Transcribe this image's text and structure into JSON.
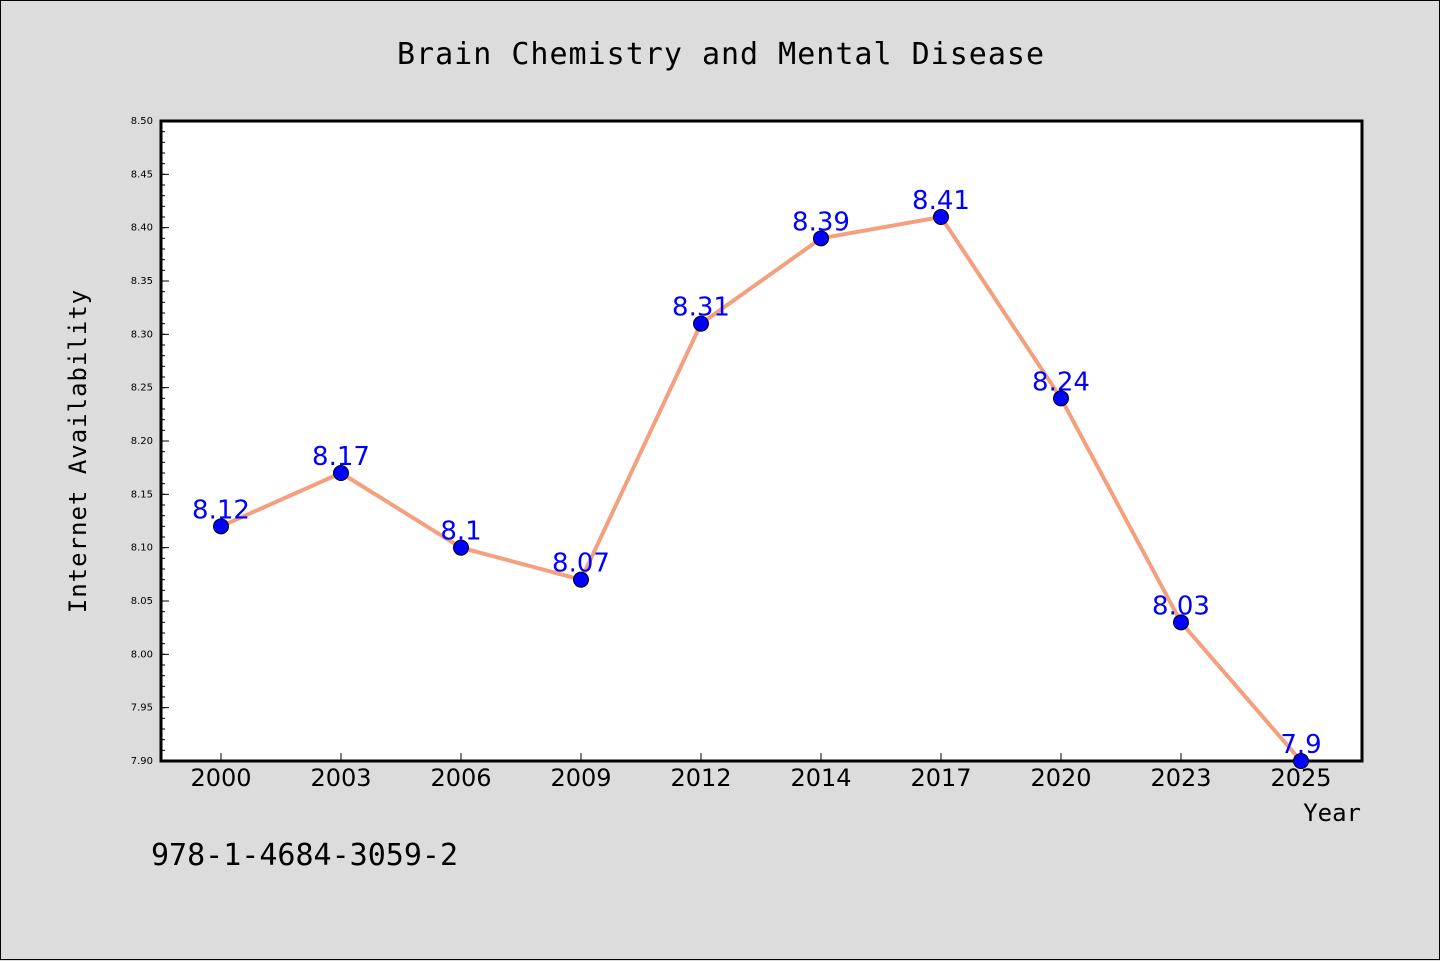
{
  "chart_data": {
    "type": "line",
    "title": "Brain Chemistry and Mental Disease",
    "xlabel": "Year",
    "ylabel": "Internet Availability",
    "categories": [
      "2000",
      "2003",
      "2006",
      "2009",
      "2012",
      "2014",
      "2017",
      "2020",
      "2023",
      "2025"
    ],
    "values": [
      8.12,
      8.17,
      8.1,
      8.07,
      8.31,
      8.39,
      8.41,
      8.24,
      8.03,
      7.9
    ],
    "data_labels": [
      "8.12",
      "8.17",
      "8.1",
      "8.07",
      "8.31",
      "8.39",
      "8.41",
      "8.24",
      "8.03",
      "7.9"
    ],
    "ylim": [
      7.9,
      8.5
    ],
    "yticks": [
      "7.90",
      "7.95",
      "8.00",
      "8.05",
      "8.10",
      "8.15",
      "8.20",
      "8.25",
      "8.30",
      "8.35",
      "8.40",
      "8.45",
      "8.50"
    ],
    "grid": false,
    "line_color": "#f4a07f",
    "marker_color": "#0000ff",
    "label_color": "#0000ff"
  },
  "annotation": "978-1-4684-3059-2"
}
